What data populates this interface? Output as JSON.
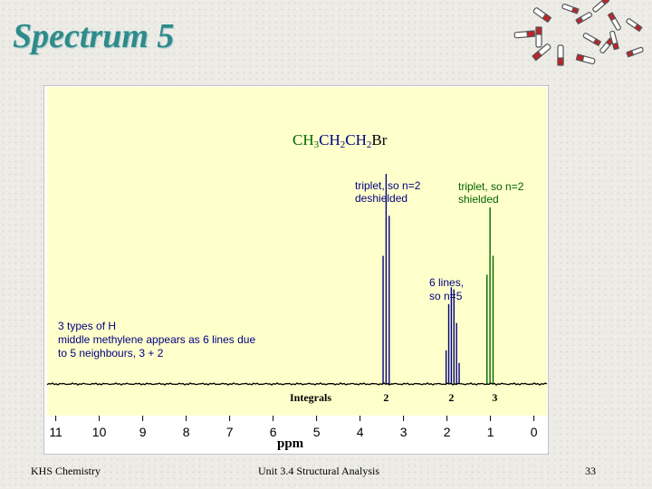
{
  "slide": {
    "title": "Spectrum 5",
    "footer_left": "KHS Chemistry",
    "footer_center": "Unit 3.4 Structural Analysis",
    "page_number": "33"
  },
  "chart_data": {
    "type": "line",
    "title": "",
    "molecule": {
      "parts": [
        {
          "text": "CH",
          "color": "#006400"
        },
        {
          "text": "3",
          "color": "#006400",
          "sub": true
        },
        {
          "text": "CH",
          "color": "#000080"
        },
        {
          "text": "2",
          "color": "#000080",
          "sub": true
        },
        {
          "text": "CH",
          "color": "#000080"
        },
        {
          "text": "2",
          "color": "#000080",
          "sub": true
        },
        {
          "text": "Br",
          "color": "#000000"
        }
      ]
    },
    "xlabel": "ppm",
    "xlim": [
      11.2,
      -0.3
    ],
    "xticks": [
      11,
      10,
      9,
      8,
      7,
      6,
      5,
      4,
      3,
      2,
      1,
      0
    ],
    "xtick_labels": [
      "11",
      "10",
      "9",
      "8",
      "7",
      "6",
      "5",
      "4",
      "3",
      "2",
      "1",
      "0"
    ],
    "integrals_label": "Integrals",
    "integrals": [
      {
        "ppm": 3.4,
        "value": "2"
      },
      {
        "ppm": 1.9,
        "value": "2"
      },
      {
        "ppm": 0.9,
        "value": "3"
      }
    ],
    "colors": {
      "background": "#ffffcc",
      "baseline": "#000000",
      "ch2br": "#000080",
      "ch2": "#000080",
      "ch3": "#006400"
    },
    "peaks": [
      {
        "group": "CH2Br",
        "color": "#000080",
        "lines": [
          {
            "ppm": 3.47,
            "height": 0.61
          },
          {
            "ppm": 3.4,
            "height": 1.0
          },
          {
            "ppm": 3.33,
            "height": 0.8
          }
        ]
      },
      {
        "group": "CH2",
        "color": "#000080",
        "lines": [
          {
            "ppm": 2.02,
            "height": 0.16
          },
          {
            "ppm": 1.96,
            "height": 0.38
          },
          {
            "ppm": 1.9,
            "height": 0.46
          },
          {
            "ppm": 1.84,
            "height": 0.45
          },
          {
            "ppm": 1.78,
            "height": 0.29
          },
          {
            "ppm": 1.72,
            "height": 0.1
          }
        ]
      },
      {
        "group": "CH3",
        "color": "#006400",
        "lines": [
          {
            "ppm": 1.08,
            "height": 0.52
          },
          {
            "ppm": 1.01,
            "height": 0.84
          },
          {
            "ppm": 0.94,
            "height": 0.61
          }
        ]
      }
    ],
    "annotations": [
      {
        "lines": [
          "triplet, so n=2",
          "deshielded"
        ],
        "color": "#000080"
      },
      {
        "lines": [
          "triplet, so n=2",
          "shielded"
        ],
        "color": "#006400"
      },
      {
        "lines": [
          "6 lines,",
          "so n=5"
        ],
        "color": "#000080"
      },
      {
        "lines": [
          "3 types of H",
          "middle methylene appears as 6 lines due",
          "to 5 neighbours, 3 + 2"
        ],
        "color": "#000080"
      }
    ]
  }
}
